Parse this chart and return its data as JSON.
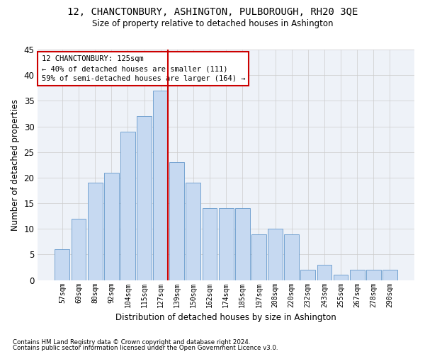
{
  "title": "12, CHANCTONBURY, ASHINGTON, PULBOROUGH, RH20 3QE",
  "subtitle": "Size of property relative to detached houses in Ashington",
  "xlabel": "Distribution of detached houses by size in Ashington",
  "ylabel": "Number of detached properties",
  "bar_labels": [
    "57sqm",
    "69sqm",
    "80sqm",
    "92sqm",
    "104sqm",
    "115sqm",
    "127sqm",
    "139sqm",
    "150sqm",
    "162sqm",
    "174sqm",
    "185sqm",
    "197sqm",
    "208sqm",
    "220sqm",
    "232sqm",
    "243sqm",
    "255sqm",
    "267sqm",
    "278sqm",
    "290sqm"
  ],
  "bar_values": [
    6,
    12,
    19,
    21,
    29,
    32,
    37,
    23,
    19,
    14,
    14,
    14,
    9,
    10,
    9,
    2,
    3,
    1,
    2,
    2,
    2
  ],
  "bar_color": "#c6d9f1",
  "bar_edge_color": "#6699cc",
  "grid_color": "#cccccc",
  "vline_index": 6,
  "vline_color": "#cc0000",
  "annotation_line1": "12 CHANCTONBURY: 125sqm",
  "annotation_line2": "← 40% of detached houses are smaller (111)",
  "annotation_line3": "59% of semi-detached houses are larger (164) →",
  "annotation_box_color": "#cc0000",
  "ylim": [
    0,
    45
  ],
  "yticks": [
    0,
    5,
    10,
    15,
    20,
    25,
    30,
    35,
    40,
    45
  ],
  "footnote1": "Contains HM Land Registry data © Crown copyright and database right 2024.",
  "footnote2": "Contains public sector information licensed under the Open Government Licence v3.0.",
  "bg_color": "#ffffff",
  "plot_bg_color": "#eef2f8"
}
